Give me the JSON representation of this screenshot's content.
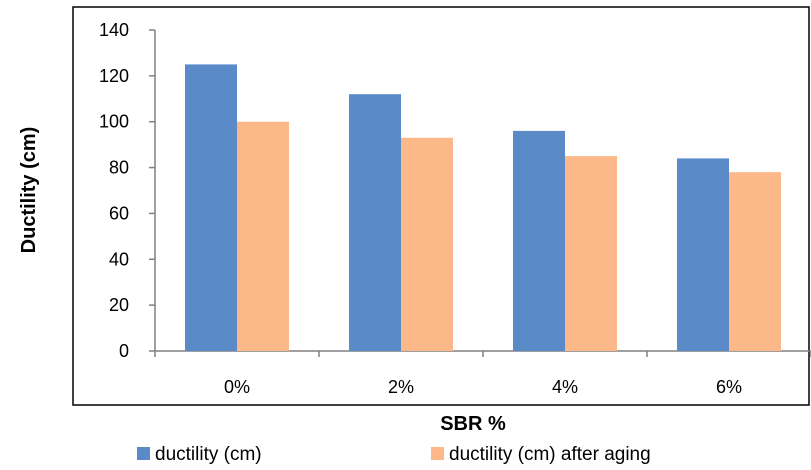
{
  "chart_data": {
    "type": "bar",
    "categories": [
      "0%",
      "2%",
      "4%",
      "6%"
    ],
    "series": [
      {
        "name": "ductility (cm)",
        "values": [
          125,
          112,
          96,
          84
        ],
        "color": "#5b8ac9"
      },
      {
        "name": "ductility (cm) after aging",
        "values": [
          100,
          93,
          85,
          78
        ],
        "color": "#fdb88a"
      }
    ],
    "xlabel": "SBR %",
    "ylabel": "Ductility (cm)",
    "ylim": [
      0,
      140
    ],
    "yticks": [
      0,
      20,
      40,
      60,
      80,
      100,
      120,
      140
    ],
    "grid": false,
    "legend_position": "bottom"
  }
}
